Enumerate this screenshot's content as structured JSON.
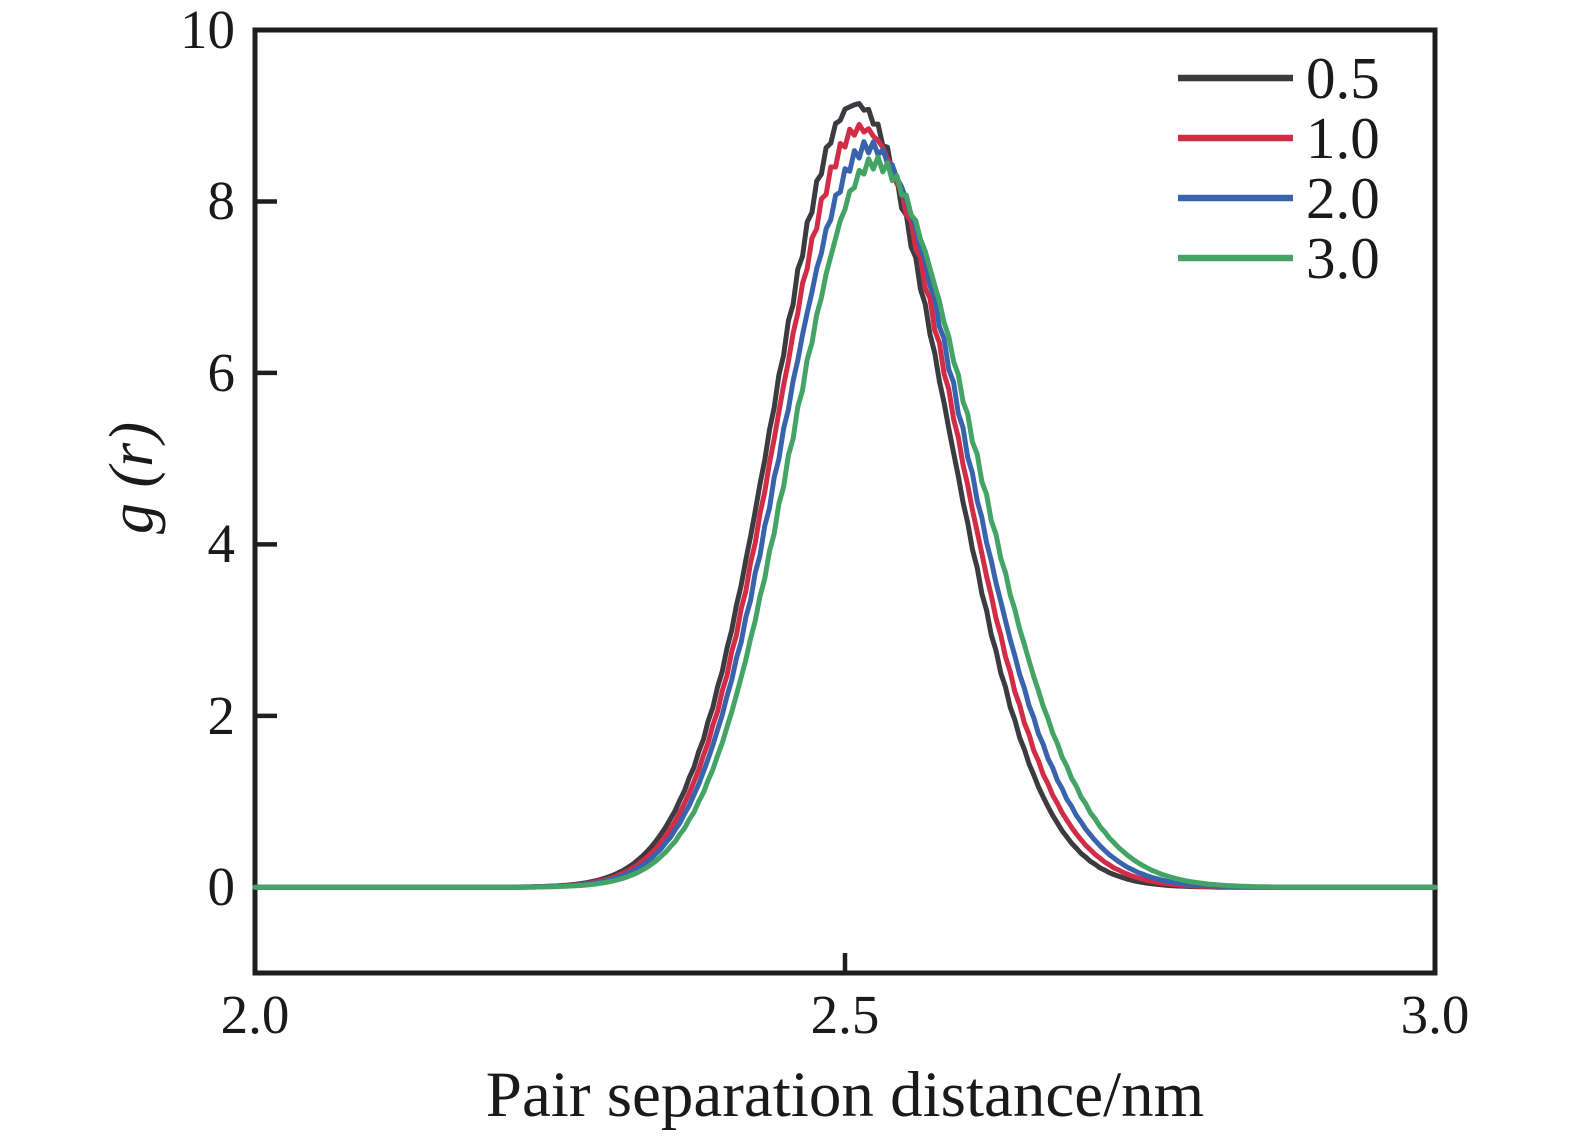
{
  "figure": {
    "background": "#ffffff",
    "frame_color": "#1e1e1e",
    "text_color": "#1a1a1a"
  },
  "chart_data": {
    "type": "line",
    "title": "",
    "xlabel": "Pair separation distance/nm",
    "ylabel": "g (r)",
    "xlim": [
      2.0,
      3.0
    ],
    "ylim": [
      -1,
      10
    ],
    "grid": false,
    "legend_position": "top-right",
    "xticks": [
      {
        "value": 2.0,
        "label": "2.0",
        "mark": false
      },
      {
        "value": 2.5,
        "label": "2.5",
        "mark": true
      },
      {
        "value": 3.0,
        "label": "3.0",
        "mark": false
      }
    ],
    "yticks": [
      {
        "value": 0,
        "label": "0",
        "mark": true
      },
      {
        "value": 2,
        "label": "2",
        "mark": true
      },
      {
        "value": 4,
        "label": "4",
        "mark": true
      },
      {
        "value": 6,
        "label": "6",
        "mark": true
      },
      {
        "value": 8,
        "label": "8",
        "mark": true
      },
      {
        "value": 10,
        "label": "10",
        "mark": false
      }
    ],
    "curve_model": "piecewise gaussian: y = peak_y * exp(-(x-peak_x)^2 / (2*sigma^2)), sigma_left used below peak_x, sigma_right above; baseline 0 elsewhere",
    "series": [
      {
        "name": "0.5",
        "color": "#3b3b40",
        "peak_x": 2.51,
        "peak_y": 9.1,
        "sigma_left": 0.0715,
        "sigma_right": 0.076,
        "baseline": 0,
        "linewidth": 5
      },
      {
        "name": "1.0",
        "color": "#d22c46",
        "peak_x": 2.514,
        "peak_y": 8.9,
        "sigma_left": 0.0715,
        "sigma_right": 0.079,
        "baseline": 0,
        "linewidth": 5
      },
      {
        "name": "2.0",
        "color": "#3a63ae",
        "peak_x": 2.519,
        "peak_y": 8.65,
        "sigma_left": 0.072,
        "sigma_right": 0.082,
        "baseline": 0,
        "linewidth": 5
      },
      {
        "name": "3.0",
        "color": "#43a466",
        "peak_x": 2.525,
        "peak_y": 8.4,
        "sigma_left": 0.072,
        "sigma_right": 0.086,
        "baseline": 0,
        "linewidth": 5
      }
    ]
  }
}
